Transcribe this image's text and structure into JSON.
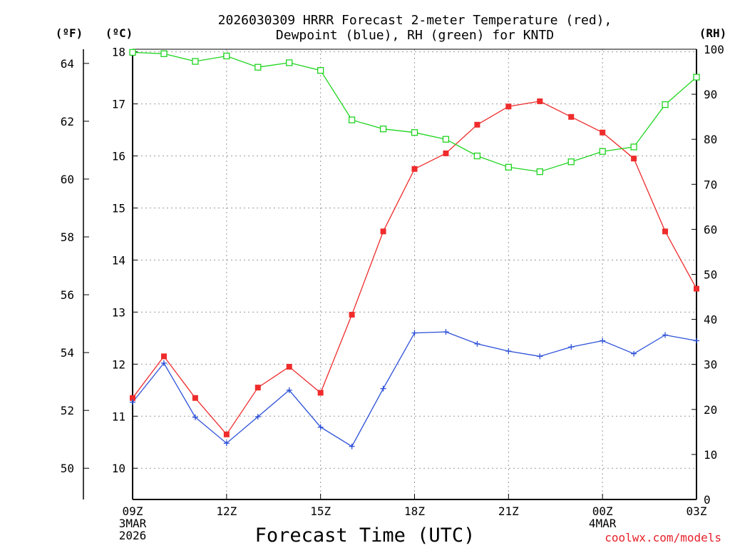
{
  "chart_data": {
    "type": "line",
    "title_line1": "2026030309 HRRR Forecast 2-meter Temperature (red),",
    "title_line2": "Dewpoint (blue), RH (green) for KNTD",
    "xlabel": "Forecast Time (UTC)",
    "credit": "coolwx.com/models",
    "left_unit_f": "(ºF)",
    "left_unit_c": "(ºC)",
    "right_unit": "(RH)",
    "y_c_range": [
      9.4,
      18.05
    ],
    "y_rh_range": [
      0,
      100
    ],
    "f_ticks": [
      {
        "v": 50,
        "label": "50"
      },
      {
        "v": 52,
        "label": "52"
      },
      {
        "v": 54,
        "label": "54"
      },
      {
        "v": 56,
        "label": "56"
      },
      {
        "v": 58,
        "label": "58"
      },
      {
        "v": 60,
        "label": "60"
      },
      {
        "v": 62,
        "label": "62"
      },
      {
        "v": 64,
        "label": "64"
      }
    ],
    "c_ticks": [
      {
        "v": 10,
        "label": "10"
      },
      {
        "v": 11,
        "label": "11"
      },
      {
        "v": 12,
        "label": "12"
      },
      {
        "v": 13,
        "label": "13"
      },
      {
        "v": 14,
        "label": "14"
      },
      {
        "v": 15,
        "label": "15"
      },
      {
        "v": 16,
        "label": "16"
      },
      {
        "v": 17,
        "label": "17"
      },
      {
        "v": 18,
        "label": "18"
      }
    ],
    "rh_ticks": [
      {
        "v": 0,
        "label": "0"
      },
      {
        "v": 10,
        "label": "10"
      },
      {
        "v": 20,
        "label": "20"
      },
      {
        "v": 30,
        "label": "30"
      },
      {
        "v": 40,
        "label": "40"
      },
      {
        "v": 50,
        "label": "50"
      },
      {
        "v": 60,
        "label": "60"
      },
      {
        "v": 70,
        "label": "70"
      },
      {
        "v": 80,
        "label": "80"
      },
      {
        "v": 90,
        "label": "90"
      },
      {
        "v": 100,
        "label": "100"
      }
    ],
    "x_ticks": [
      {
        "hour": 0,
        "lines": [
          "09Z",
          "3MAR",
          "2026"
        ]
      },
      {
        "hour": 3,
        "lines": [
          "12Z"
        ]
      },
      {
        "hour": 6,
        "lines": [
          "15Z"
        ]
      },
      {
        "hour": 9,
        "lines": [
          "18Z"
        ]
      },
      {
        "hour": 12,
        "lines": [
          "21Z"
        ]
      },
      {
        "hour": 15,
        "lines": [
          "00Z",
          "4MAR"
        ]
      },
      {
        "hour": 18,
        "lines": [
          "03Z"
        ]
      }
    ],
    "x_range": [
      0,
      18
    ],
    "series": [
      {
        "name": "Temperature",
        "color": "#ef2b2b",
        "marker": "filled-square",
        "axis": "C",
        "values": [
          11.35,
          12.15,
          11.35,
          10.65,
          11.55,
          11.95,
          11.45,
          12.95,
          14.55,
          15.75,
          16.05,
          16.6,
          16.95,
          17.05,
          16.75,
          16.45,
          15.95,
          14.55,
          13.45
        ]
      },
      {
        "name": "Dewpoint",
        "color": "#2b4fd8",
        "marker": "plus",
        "axis": "C",
        "values": [
          11.27,
          12.02,
          10.98,
          10.48,
          10.99,
          11.5,
          10.79,
          10.42,
          11.53,
          12.6,
          12.62,
          12.39,
          12.25,
          12.15,
          12.33,
          12.45,
          12.2,
          12.56,
          12.45
        ]
      },
      {
        "name": "RH",
        "color": "#1ed41e",
        "marker": "open-square",
        "axis": "RH",
        "values": [
          99.3,
          99.0,
          97.3,
          98.5,
          96.0,
          97.0,
          95.3,
          84.3,
          82.3,
          81.5,
          80.0,
          76.3,
          73.8,
          72.8,
          75.0,
          77.3,
          78.3,
          87.7,
          93.8
        ]
      }
    ]
  }
}
